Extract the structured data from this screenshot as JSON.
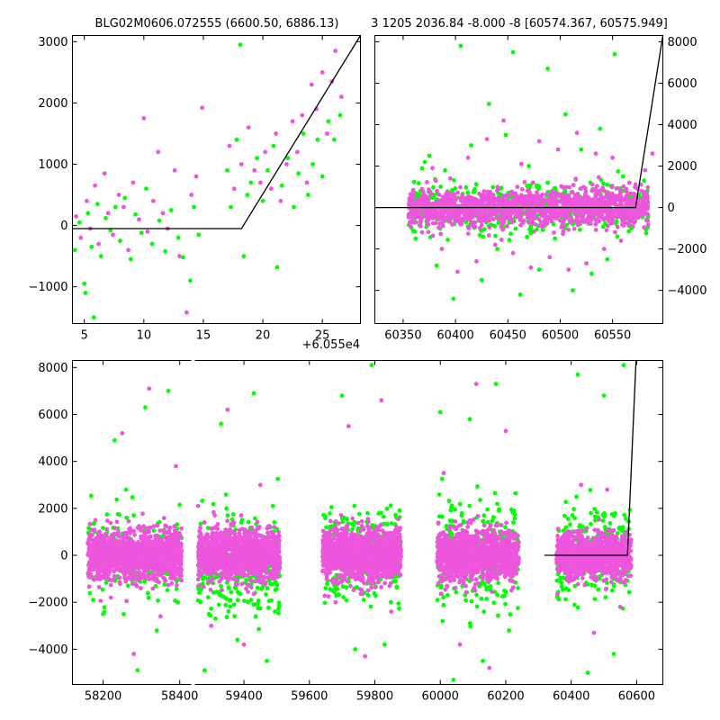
{
  "chart_data": [
    {
      "id": "zoom-left",
      "type": "scatter",
      "title": "BLG02M0606.072555 (6600.50, 6886.13)",
      "xlim": [
        4,
        28.2
      ],
      "ylim": [
        -1600,
        3100
      ],
      "xticks": [
        5,
        10,
        15,
        20,
        25
      ],
      "yticks": [
        -1000,
        0,
        1000,
        2000,
        3000
      ],
      "x_offset_label": "+6.055e4",
      "yaxis_side": "left",
      "series": [
        {
          "color": "#00ff00",
          "points": [
            [
              4.2,
              -400
            ],
            [
              4.6,
              50
            ],
            [
              5.0,
              -950
            ],
            [
              5.1,
              -1100
            ],
            [
              5.3,
              200
            ],
            [
              5.6,
              -350
            ],
            [
              5.8,
              -1500
            ],
            [
              6.1,
              350
            ],
            [
              6.4,
              -500
            ],
            [
              6.8,
              120
            ],
            [
              7.2,
              -80
            ],
            [
              7.6,
              300
            ],
            [
              8.0,
              -250
            ],
            [
              8.4,
              450
            ],
            [
              8.9,
              -550
            ],
            [
              9.3,
              180
            ],
            [
              9.8,
              -120
            ],
            [
              10.2,
              600
            ],
            [
              10.7,
              -300
            ],
            [
              11.3,
              80
            ],
            [
              11.8,
              -420
            ],
            [
              12.3,
              250
            ],
            [
              12.9,
              -200
            ],
            [
              13.3,
              -520
            ],
            [
              13.9,
              -900
            ],
            [
              14.2,
              300
            ],
            [
              14.6,
              -150
            ],
            [
              17.0,
              900
            ],
            [
              17.3,
              300
            ],
            [
              17.8,
              1400
            ],
            [
              18.1,
              2950
            ],
            [
              18.4,
              -500
            ],
            [
              18.7,
              500
            ],
            [
              19.0,
              700
            ],
            [
              19.5,
              1100
            ],
            [
              20.0,
              400
            ],
            [
              20.4,
              900
            ],
            [
              20.9,
              1300
            ],
            [
              21.2,
              -680
            ],
            [
              21.6,
              650
            ],
            [
              22.1,
              1100
            ],
            [
              22.6,
              300
            ],
            [
              23.0,
              850
            ],
            [
              23.4,
              1500
            ],
            [
              23.8,
              500
            ],
            [
              24.2,
              1000
            ],
            [
              24.6,
              1400
            ],
            [
              25.0,
              800
            ],
            [
              25.5,
              1700
            ],
            [
              26.0,
              1400
            ],
            [
              26.5,
              1800
            ]
          ]
        },
        {
          "color": "#ee55dd",
          "points": [
            [
              4.3,
              150
            ],
            [
              4.7,
              -200
            ],
            [
              5.2,
              400
            ],
            [
              5.5,
              -50
            ],
            [
              5.9,
              650
            ],
            [
              6.2,
              -300
            ],
            [
              6.7,
              850
            ],
            [
              7.0,
              200
            ],
            [
              7.4,
              -150
            ],
            [
              7.9,
              500
            ],
            [
              8.3,
              300
            ],
            [
              8.7,
              -400
            ],
            [
              9.1,
              700
            ],
            [
              9.6,
              100
            ],
            [
              10.0,
              1750
            ],
            [
              10.3,
              -100
            ],
            [
              10.8,
              400
            ],
            [
              11.2,
              1200
            ],
            [
              11.6,
              200
            ],
            [
              12.0,
              -50
            ],
            [
              12.6,
              900
            ],
            [
              13.0,
              -500
            ],
            [
              13.6,
              -1420
            ],
            [
              14.0,
              500
            ],
            [
              14.4,
              800
            ],
            [
              14.9,
              1920
            ],
            [
              17.2,
              1300
            ],
            [
              17.6,
              600
            ],
            [
              18.2,
              1000
            ],
            [
              18.8,
              1600
            ],
            [
              19.3,
              900
            ],
            [
              19.8,
              700
            ],
            [
              20.2,
              1200
            ],
            [
              20.7,
              600
            ],
            [
              21.1,
              1500
            ],
            [
              21.5,
              400
            ],
            [
              22.0,
              1000
            ],
            [
              22.5,
              1700
            ],
            [
              22.9,
              1200
            ],
            [
              23.3,
              1800
            ],
            [
              23.7,
              700
            ],
            [
              24.1,
              2300
            ],
            [
              24.5,
              1900
            ],
            [
              25.0,
              2500
            ],
            [
              25.4,
              1500
            ],
            [
              25.8,
              2350
            ],
            [
              26.1,
              2850
            ],
            [
              26.6,
              2100
            ]
          ]
        }
      ],
      "model": [
        [
          4,
          -50
        ],
        [
          18.2,
          -50
        ],
        [
          28.2,
          3100
        ]
      ]
    },
    {
      "id": "zoom-right",
      "type": "scatter",
      "title": "3 1205 2036.84 -8.000 -8 [60574.367, 60575.949]",
      "xlim": [
        60323,
        60598
      ],
      "ylim": [
        -5600,
        8300
      ],
      "xticks": [
        60350,
        60400,
        60450,
        60500,
        60550
      ],
      "yticks": [
        -4000,
        -2000,
        0,
        2000,
        4000,
        6000,
        8000
      ],
      "yaxis_side": "right",
      "series": [
        {
          "color": "#00ff00",
          "points": [
            [
              60362,
              -1500
            ],
            [
              60375,
              2500
            ],
            [
              60382,
              -2800
            ],
            [
              60390,
              1800
            ],
            [
              60398,
              -4400
            ],
            [
              60405,
              7800
            ],
            [
              60415,
              3000
            ],
            [
              60425,
              -3500
            ],
            [
              60432,
              5000
            ],
            [
              60440,
              -2000
            ],
            [
              60448,
              3500
            ],
            [
              60455,
              7500
            ],
            [
              60462,
              -4200
            ],
            [
              60470,
              2000
            ],
            [
              60480,
              -3000
            ],
            [
              60488,
              6700
            ],
            [
              60495,
              -1500
            ],
            [
              60505,
              4500
            ],
            [
              60512,
              -4000
            ],
            [
              60520,
              2800
            ],
            [
              60530,
              -3200
            ],
            [
              60538,
              3800
            ],
            [
              60545,
              -2500
            ],
            [
              60552,
              7400
            ],
            [
              60560,
              1500
            ],
            [
              60568,
              -1000
            ],
            [
              60575,
              600
            ],
            [
              60580,
              1300
            ]
          ]
        },
        {
          "color": "#ee55dd",
          "points": [
            [
              60358,
              500
            ],
            [
              60368,
              -1200
            ],
            [
              60378,
              1900
            ],
            [
              60387,
              -2000
            ],
            [
              60395,
              1400
            ],
            [
              60402,
              -3100
            ],
            [
              60412,
              2400
            ],
            [
              60420,
              -2600
            ],
            [
              60430,
              3300
            ],
            [
              60438,
              -1800
            ],
            [
              60446,
              4200
            ],
            [
              60455,
              -2200
            ],
            [
              60463,
              2100
            ],
            [
              60472,
              -2900
            ],
            [
              60480,
              3200
            ],
            [
              60490,
              -2400
            ],
            [
              60498,
              2800
            ],
            [
              60508,
              -3000
            ],
            [
              60516,
              3600
            ],
            [
              60525,
              -2700
            ],
            [
              60534,
              2600
            ],
            [
              60542,
              -2000
            ],
            [
              60550,
              2400
            ],
            [
              60558,
              -1600
            ],
            [
              60566,
              1200
            ],
            [
              60574,
              900
            ],
            [
              60581,
              1800
            ],
            [
              60588,
              2600
            ]
          ]
        }
      ],
      "band": [
        {
          "color": "#00ff00",
          "x0": 60355,
          "x1": 60584,
          "ymin": -1300,
          "ymax": 1300,
          "count": 550,
          "seed": 11
        },
        {
          "color": "#ee55dd",
          "x0": 60355,
          "x1": 60584,
          "ymin": -900,
          "ymax": 900,
          "count": 1500,
          "seed": 23
        }
      ],
      "model": [
        [
          60323,
          0
        ],
        [
          60572,
          0
        ],
        [
          60598,
          8300
        ]
      ]
    },
    {
      "id": "full-range",
      "type": "scatter",
      "xlim": [
        58120,
        60680
      ],
      "ylim": [
        -5500,
        8300
      ],
      "xticks_left": [
        58200,
        58400
      ],
      "xticks_right": [
        59400,
        59600,
        59800,
        60000,
        60200,
        60400,
        60600
      ],
      "broken_axis": {
        "left_xlim": [
          58120,
          58430
        ],
        "right_xlim": [
          59250,
          60680
        ]
      },
      "yticks": [
        -4000,
        -2000,
        0,
        2000,
        4000,
        6000,
        8000
      ],
      "yaxis_side": "left",
      "series": [
        {
          "color": "#00ff00",
          "points": [
            [
              58200,
              -2500
            ],
            [
              58230,
              4900
            ],
            [
              58260,
              2800
            ],
            [
              58290,
              -4900
            ],
            [
              58310,
              6300
            ],
            [
              58340,
              -3200
            ],
            [
              58370,
              7000
            ],
            [
              58395,
              -2000
            ],
            [
              59280,
              -4900
            ],
            [
              59330,
              5600
            ],
            [
              59380,
              -3600
            ],
            [
              59430,
              6900
            ],
            [
              59470,
              -4500
            ],
            [
              59700,
              6800
            ],
            [
              59740,
              -4000
            ],
            [
              59790,
              8100
            ],
            [
              59830,
              -3800
            ],
            [
              60000,
              6100
            ],
            [
              60040,
              -5300
            ],
            [
              60090,
              5800
            ],
            [
              60130,
              -4500
            ],
            [
              60170,
              7300
            ],
            [
              60210,
              -3200
            ],
            [
              60420,
              7700
            ],
            [
              60450,
              -5000
            ],
            [
              60500,
              6800
            ],
            [
              60530,
              -4200
            ],
            [
              60560,
              8100
            ]
          ]
        },
        {
          "color": "#ee55dd",
          "points": [
            [
              58180,
              1500
            ],
            [
              58220,
              -1800
            ],
            [
              58250,
              5200
            ],
            [
              58280,
              -4200
            ],
            [
              58320,
              7100
            ],
            [
              58350,
              -2600
            ],
            [
              58390,
              3800
            ],
            [
              59260,
              2100
            ],
            [
              59300,
              -3000
            ],
            [
              59350,
              6200
            ],
            [
              59400,
              -3800
            ],
            [
              59450,
              3000
            ],
            [
              59680,
              -2000
            ],
            [
              59720,
              5500
            ],
            [
              59770,
              -4300
            ],
            [
              59820,
              6600
            ],
            [
              59850,
              -2400
            ],
            [
              60010,
              3500
            ],
            [
              60060,
              -3800
            ],
            [
              60110,
              7300
            ],
            [
              60150,
              -4800
            ],
            [
              60200,
              5300
            ],
            [
              60430,
              3000
            ],
            [
              60470,
              -3300
            ],
            [
              60510,
              2800
            ],
            [
              60550,
              -2200
            ]
          ]
        }
      ],
      "band": [
        {
          "color": "#00ff00",
          "x0": 58160,
          "x1": 58405,
          "ymin": -1700,
          "ymax": 1700,
          "count": 260,
          "seed": 3
        },
        {
          "color": "#ee55dd",
          "x0": 58160,
          "x1": 58405,
          "ymin": -1100,
          "ymax": 1100,
          "count": 1200,
          "seed": 5
        },
        {
          "color": "#00ff00",
          "x0": 59260,
          "x1": 59510,
          "ymin": -2600,
          "ymax": 1600,
          "count": 320,
          "seed": 7
        },
        {
          "color": "#ee55dd",
          "x0": 59260,
          "x1": 59510,
          "ymin": -1100,
          "ymax": 1100,
          "count": 1200,
          "seed": 9
        },
        {
          "color": "#00ff00",
          "x0": 59640,
          "x1": 59880,
          "ymin": -2000,
          "ymax": 2000,
          "count": 300,
          "seed": 13
        },
        {
          "color": "#ee55dd",
          "x0": 59640,
          "x1": 59880,
          "ymin": -1100,
          "ymax": 1100,
          "count": 1200,
          "seed": 15
        },
        {
          "color": "#00ff00",
          "x0": 59990,
          "x1": 60240,
          "ymin": -2300,
          "ymax": 2300,
          "count": 320,
          "seed": 17
        },
        {
          "color": "#ee55dd",
          "x0": 59990,
          "x1": 60240,
          "ymin": -1100,
          "ymax": 1100,
          "count": 1200,
          "seed": 19
        },
        {
          "color": "#00ff00",
          "x0": 60355,
          "x1": 60584,
          "ymin": -1800,
          "ymax": 2000,
          "count": 320,
          "seed": 29
        },
        {
          "color": "#ee55dd",
          "x0": 60355,
          "x1": 60584,
          "ymin": -1000,
          "ymax": 1000,
          "count": 1000,
          "seed": 31
        }
      ],
      "model": [
        [
          60318,
          0
        ],
        [
          60572,
          0
        ],
        [
          60598,
          8300
        ]
      ]
    }
  ]
}
